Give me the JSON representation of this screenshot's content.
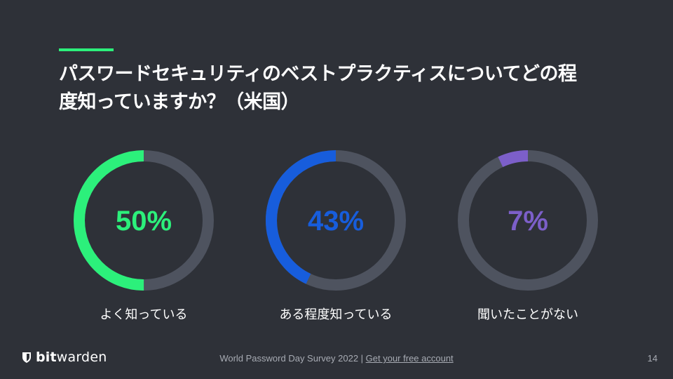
{
  "title_lines": [
    "パスワードセキュリティのベストプラクティスについてどの程",
    "度知っていますか？（米国）"
  ],
  "chart_data": {
    "type": "pie",
    "track_color": "#4e535f",
    "items": [
      {
        "value": 50,
        "value_label": "50%",
        "label": "よく知っている",
        "color": "#2cf07b"
      },
      {
        "value": 43,
        "value_label": "43%",
        "label": "ある程度知っている",
        "color": "#175ddc"
      },
      {
        "value": 7,
        "value_label": "7%",
        "label": "聞いたことがない",
        "color": "#7c5fc9"
      }
    ]
  },
  "logo": {
    "bold": "bit",
    "regular": "warden"
  },
  "footer": {
    "text": "World Password Day Survey 2022 | ",
    "link": "Get your free account"
  },
  "page_number": "14",
  "colors": {
    "background": "#2e3138",
    "accent": "#2cf07b"
  }
}
